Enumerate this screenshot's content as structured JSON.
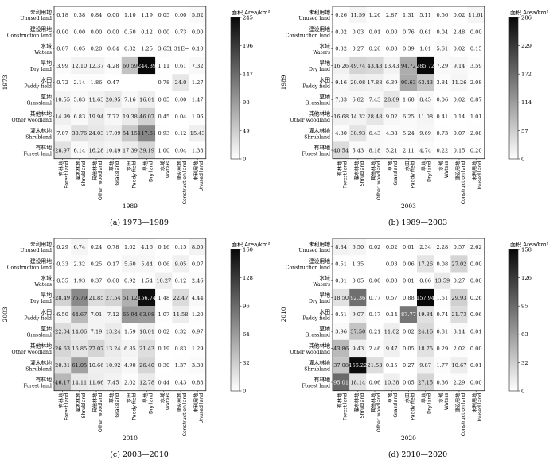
{
  "figure": {
    "land_types": [
      {
        "zh": "有林地",
        "en": "Forest land"
      },
      {
        "zh": "灌木林地",
        "en": "Shrubland"
      },
      {
        "zh": "其他林地",
        "en": "Other woodland"
      },
      {
        "zh": "草地",
        "en": "Grassland"
      },
      {
        "zh": "水田",
        "en": "Paddy field"
      },
      {
        "zh": "旱地",
        "en": "Dry land"
      },
      {
        "zh": "水域",
        "en": "Waters"
      },
      {
        "zh": "建设用地",
        "en": "Construction land"
      },
      {
        "zh": "未利用地",
        "en": "Unused land"
      }
    ],
    "colorbar_title": "面积 Area/km²"
  },
  "chart_data": [
    {
      "type": "heatmap",
      "caption": "(a) 1973—1989",
      "row_year": "1973",
      "col_year": "1989",
      "colorbar_ticks": [
        "245",
        "196",
        "147",
        "98",
        "49",
        "0"
      ],
      "zmax": 245,
      "rows_top_to_bottom": [
        "Unused land",
        "Construction land",
        "Waters",
        "Dry land",
        "Paddy field",
        "Grassland",
        "Other woodland",
        "Shrubland",
        "Forest land"
      ],
      "cols_left_to_right": [
        "Forest land",
        "Shrubland",
        "Other woodland",
        "Grassland",
        "Paddy field",
        "Dry land",
        "Waters",
        "Construction land",
        "Unused land"
      ],
      "values": [
        [
          "0.18",
          "0.38",
          "0.84",
          "0.00",
          "1.10",
          "1.19",
          "0.05",
          "0.00",
          "5.62"
        ],
        [
          "0.00",
          "0.00",
          "0.00",
          "0.00",
          "0.50",
          "0.12",
          "0.00",
          "0.73",
          "0.00"
        ],
        [
          "0.07",
          "0.05",
          "0.20",
          "0.04",
          "0.82",
          "1.25",
          "3.65",
          "1.31E−4",
          "0.10"
        ],
        [
          "3.99",
          "12.10",
          "12.37",
          "4.28",
          "60.59",
          "244.39",
          "1.11",
          "0.61",
          "7.32"
        ],
        [
          "0.72",
          "2.14",
          "1.86",
          "0.47",
          "",
          "",
          "0.78",
          "24.0",
          "1.27"
        ],
        [
          "10.55",
          "5.83",
          "11.63",
          "20.95",
          "7.16",
          "16.01",
          "0.05",
          "0.00",
          "1.47"
        ],
        [
          "14.99",
          "6.83",
          "19.94",
          "7.72",
          "19.38",
          "46.07",
          "0.45",
          "0.04",
          "1.96"
        ],
        [
          "7.07",
          "30.76",
          "24.03",
          "17.09",
          "54.15",
          "117.61",
          "0.93",
          "0.12",
          "15.43"
        ],
        [
          "28.97",
          "6.14",
          "16.28",
          "10.49",
          "17.39",
          "39.19",
          "1.00",
          "0.04",
          "1.38"
        ]
      ]
    },
    {
      "type": "heatmap",
      "caption": "(b) 1989—2003",
      "row_year": "1989",
      "col_year": "2003",
      "colorbar_ticks": [
        "286",
        "229",
        "172",
        "114",
        "57",
        "0"
      ],
      "zmax": 286,
      "rows_top_to_bottom": [
        "Unused land",
        "Construction land",
        "Waters",
        "Dry land",
        "Paddy field",
        "Grassland",
        "Other woodland",
        "Shrubland",
        "Forest land"
      ],
      "cols_left_to_right": [
        "Forest land",
        "Shrubland",
        "Other woodland",
        "Grassland",
        "Paddy field",
        "Dry land",
        "Waters",
        "Construction land",
        "Unused land"
      ],
      "values": [
        [
          "0.26",
          "11.59",
          "1.26",
          "2.87",
          "1.31",
          "5.11",
          "0.56",
          "0.02",
          "11.61"
        ],
        [
          "0.02",
          "0.03",
          "0.01",
          "0.00",
          "0.76",
          "0.61",
          "0.04",
          "2.48",
          "0.00"
        ],
        [
          "0.32",
          "0.27",
          "0.26",
          "0.00",
          "0.39",
          "1.01",
          "5.61",
          "0.02",
          "0.15"
        ],
        [
          "16.26",
          "49.74",
          "43.43",
          "13.43",
          "94.72",
          "285.72",
          "7.29",
          "9.14",
          "3.59"
        ],
        [
          "9.16",
          "20.08",
          "17.88",
          "6.39",
          "99.63",
          "63.43",
          "3.84",
          "11.26",
          "2.08"
        ],
        [
          "7.83",
          "6.82",
          "7.43",
          "28.09",
          "1.60",
          "8.45",
          "0.06",
          "0.02",
          "0.87"
        ],
        [
          "16.68",
          "14.32",
          "28.48",
          "9.02",
          "6.25",
          "11.08",
          "0.41",
          "0.14",
          "1.01"
        ],
        [
          "4.80",
          "30.93",
          "6.43",
          "4.38",
          "5.24",
          "9.69",
          "0.73",
          "0.07",
          "2.08"
        ],
        [
          "40.54",
          "5.43",
          "8.18",
          "5.21",
          "2.11",
          "4.74",
          "0.22",
          "0.15",
          "0.20"
        ]
      ]
    },
    {
      "type": "heatmap",
      "caption": "(c) 2003—2010",
      "row_year": "2003",
      "col_year": "2010",
      "colorbar_ticks": [
        "160",
        "128",
        "96",
        "64",
        "32",
        "0"
      ],
      "zmax": 160,
      "rows_top_to_bottom": [
        "Unused land",
        "Construction land",
        "Waters",
        "Dry land",
        "Paddy field",
        "Grassland",
        "Other woodland",
        "Shrubland",
        "Forest land"
      ],
      "cols_left_to_right": [
        "Forest land",
        "Shrubland",
        "Other woodland",
        "Grassland",
        "Paddy field",
        "Dry land",
        "Waters",
        "Construction land",
        "Unused land"
      ],
      "values": [
        [
          "0.29",
          "6.74",
          "0.24",
          "0.78",
          "1.02",
          "4.16",
          "0.16",
          "0.15",
          "8.05"
        ],
        [
          "0.33",
          "2.32",
          "0.25",
          "0.17",
          "5.60",
          "5.44",
          "0.06",
          "9.05",
          "0.07"
        ],
        [
          "0.55",
          "1.93",
          "0.37",
          "0.60",
          "0.92",
          "1.54",
          "10.27",
          "0.12",
          "2.46"
        ],
        [
          "28.49",
          "75.79",
          "21.85",
          "27.54",
          "51.12",
          "156.74",
          "1.48",
          "22.47",
          "4.44"
        ],
        [
          "6.50",
          "44.67",
          "7.01",
          "7.12",
          "65.94",
          "63.98",
          "1.07",
          "11.58",
          "1.20"
        ],
        [
          "22.04",
          "14.06",
          "7.19",
          "13.24",
          "1.59",
          "10.01",
          "0.02",
          "0.32",
          "0.97"
        ],
        [
          "26.63",
          "16.85",
          "27.07",
          "13.24",
          "6.85",
          "21.43",
          "0.19",
          "0.83",
          "1.29"
        ],
        [
          "20.31",
          "61.05",
          "10.66",
          "10.92",
          "4.90",
          "26.40",
          "0.30",
          "1.37",
          "3.30"
        ],
        [
          "46.17",
          "14.11",
          "11.66",
          "7.45",
          "2.02",
          "12.78",
          "0.44",
          "0.43",
          "0.88"
        ]
      ]
    },
    {
      "type": "heatmap",
      "caption": "(d) 2010—2020",
      "row_year": "2010",
      "col_year": "2020",
      "colorbar_ticks": [
        "158",
        "126",
        "95",
        "63",
        "32",
        "0"
      ],
      "zmax": 158,
      "rows_top_to_bottom": [
        "Unused land",
        "Construction land",
        "Waters",
        "Dry land",
        "Paddy field",
        "Grassland",
        "Other woodland",
        "Shrubland",
        "Forest land"
      ],
      "cols_left_to_right": [
        "Forest land",
        "Shrubland",
        "Other woodland",
        "Grassland",
        "Paddy field",
        "Dry land",
        "Waters",
        "Construction land",
        "Unused land"
      ],
      "values": [
        [
          "8.34",
          "6.50",
          "0.02",
          "0.02",
          "0.01",
          "2.34",
          "2.28",
          "0.57",
          "2.62"
        ],
        [
          "0.51",
          "1.35",
          "",
          "0.03",
          "0.06",
          "17.26",
          "0.08",
          "27.02",
          "0.00"
        ],
        [
          "0.01",
          "0.05",
          "0.00",
          "0.00",
          "0.01",
          "0.06",
          "13.59",
          "0.27",
          "0.00"
        ],
        [
          "18.50",
          "92.36",
          "0.77",
          "0.57",
          "0.88",
          "157.94",
          "1.51",
          "29.93",
          "0.26"
        ],
        [
          "0.51",
          "9.07",
          "0.17",
          "0.14",
          "87.77",
          "19.84",
          "0.74",
          "21.73",
          "0.06"
        ],
        [
          "3.96",
          "37.50",
          "0.21",
          "11.02",
          "0.02",
          "24.16",
          "0.81",
          "3.14",
          "0.01"
        ],
        [
          "43.86",
          "9.43",
          "2.46",
          "9.47",
          "0.05",
          "18.75",
          "0.29",
          "2.02",
          "0.00"
        ],
        [
          "37.08",
          "156.22",
          "21.53",
          "0.15",
          "0.27",
          "9.87",
          "1.77",
          "10.67",
          "0.01"
        ],
        [
          "95.01",
          "18.14",
          "0.06",
          "10.38",
          "0.05",
          "27.15",
          "0.36",
          "2.29",
          "0.00"
        ]
      ]
    }
  ]
}
